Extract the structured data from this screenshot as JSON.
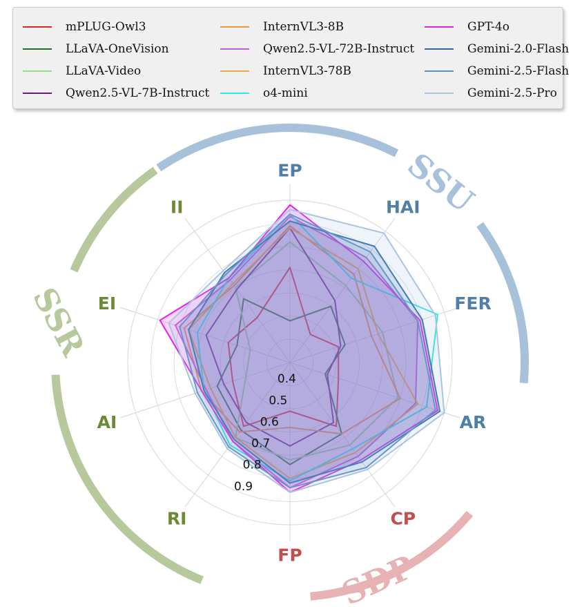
{
  "chart_data": {
    "type": "radar",
    "axes": [
      "EP",
      "HAI",
      "FER",
      "AR",
      "CP",
      "FP",
      "RI",
      "AI",
      "EI",
      "II"
    ],
    "groups": [
      {
        "name": "SSU",
        "axes": [
          "EP",
          "HAI",
          "FER",
          "AR"
        ],
        "color": "#a7c1da"
      },
      {
        "name": "SDP",
        "axes": [
          "CP",
          "FP"
        ],
        "color": "#e7b2b4"
      },
      {
        "name": "SSR",
        "axes": [
          "RI",
          "AI",
          "EI",
          "II"
        ],
        "color": "#b7c99c"
      }
    ],
    "axis_label_colors": {
      "EP": "#4e7fa8",
      "HAI": "#4e7fa8",
      "FER": "#4e7fa8",
      "AR": "#4e7fa8",
      "CP": "#c0504d",
      "FP": "#c0504d",
      "RI": "#6b8a34",
      "AI": "#6b8a34",
      "EI": "#6b8a34",
      "II": "#6b8a34"
    },
    "rlim": [
      0.3,
      1.0
    ],
    "rticks": [
      0.4,
      0.5,
      0.6,
      0.7,
      0.8,
      0.9
    ],
    "rtick_labels": [
      "0.4",
      "0.5",
      "0.6",
      "0.7",
      "0.8",
      "0.9"
    ],
    "series": [
      {
        "name": "mPLUG-Owl3",
        "color": "#e8201f",
        "values": [
          0.71,
          0.45,
          0.52,
          0.52,
          0.64,
          0.51,
          0.64,
          0.56,
          0.58,
          0.54
        ],
        "fill": false
      },
      {
        "name": "LLaVA-OneVision",
        "color": "#1a6e20",
        "values": [
          0.48,
          0.6,
          0.55,
          0.46,
          0.68,
          0.74,
          0.66,
          0.63,
          0.54,
          0.64
        ],
        "fill": false
      },
      {
        "name": "LLaVA-Video",
        "color": "#8fe08a",
        "values": [
          0.82,
          0.71,
          0.72,
          0.79,
          0.74,
          0.72,
          0.7,
          0.5,
          0.48,
          0.7
        ],
        "fill": false
      },
      {
        "name": "Qwen2.5-VL-7B-Instruct",
        "color": "#6b1a78",
        "values": [
          0.88,
          0.63,
          0.53,
          0.47,
          0.62,
          0.66,
          0.62,
          0.6,
          0.68,
          0.69
        ],
        "fill": false
      },
      {
        "name": "InternVL3-8B",
        "color": "#f39532",
        "values": [
          0.89,
          0.77,
          0.67,
          0.8,
          0.68,
          0.58,
          0.67,
          0.7,
          0.78,
          0.71
        ],
        "fill": false
      },
      {
        "name": "Qwen2.5-VL-72B-Instruct",
        "color": "#c25cd6",
        "values": [
          0.93,
          0.86,
          0.88,
          0.87,
          0.8,
          0.84,
          0.72,
          0.68,
          0.82,
          0.74
        ],
        "fill": true
      },
      {
        "name": "InternVL3-78B",
        "color": "#f7a83a",
        "values": [
          0.88,
          0.8,
          0.7,
          0.88,
          0.78,
          0.8,
          0.7,
          0.66,
          0.76,
          0.72
        ],
        "fill": false
      },
      {
        "name": "o4-mini",
        "color": "#26e8f0",
        "values": [
          0.94,
          0.75,
          0.97,
          0.92,
          0.76,
          0.81,
          0.74,
          0.69,
          0.72,
          0.75
        ],
        "fill": false
      },
      {
        "name": "GPT-4o",
        "color": "#e61ee6",
        "values": [
          0.98,
          0.84,
          0.89,
          0.97,
          0.82,
          0.86,
          0.72,
          0.7,
          0.89,
          0.75
        ],
        "fill": true
      },
      {
        "name": "Gemini-2.0-Flash",
        "color": "#2c6aa8",
        "values": [
          0.91,
          0.92,
          0.9,
          0.98,
          0.83,
          0.82,
          0.71,
          0.69,
          0.76,
          0.78
        ],
        "fill": true
      },
      {
        "name": "Gemini-2.5-Flash",
        "color": "#5b8cc4",
        "values": [
          0.94,
          0.89,
          0.88,
          0.96,
          0.86,
          0.84,
          0.75,
          0.72,
          0.8,
          0.77
        ],
        "fill": true
      },
      {
        "name": "Gemini-2.5-Pro",
        "color": "#a8c4e2",
        "values": [
          0.96,
          0.99,
          0.96,
          1.0,
          0.87,
          0.86,
          0.76,
          0.73,
          0.85,
          0.79
        ],
        "fill": true
      }
    ]
  }
}
